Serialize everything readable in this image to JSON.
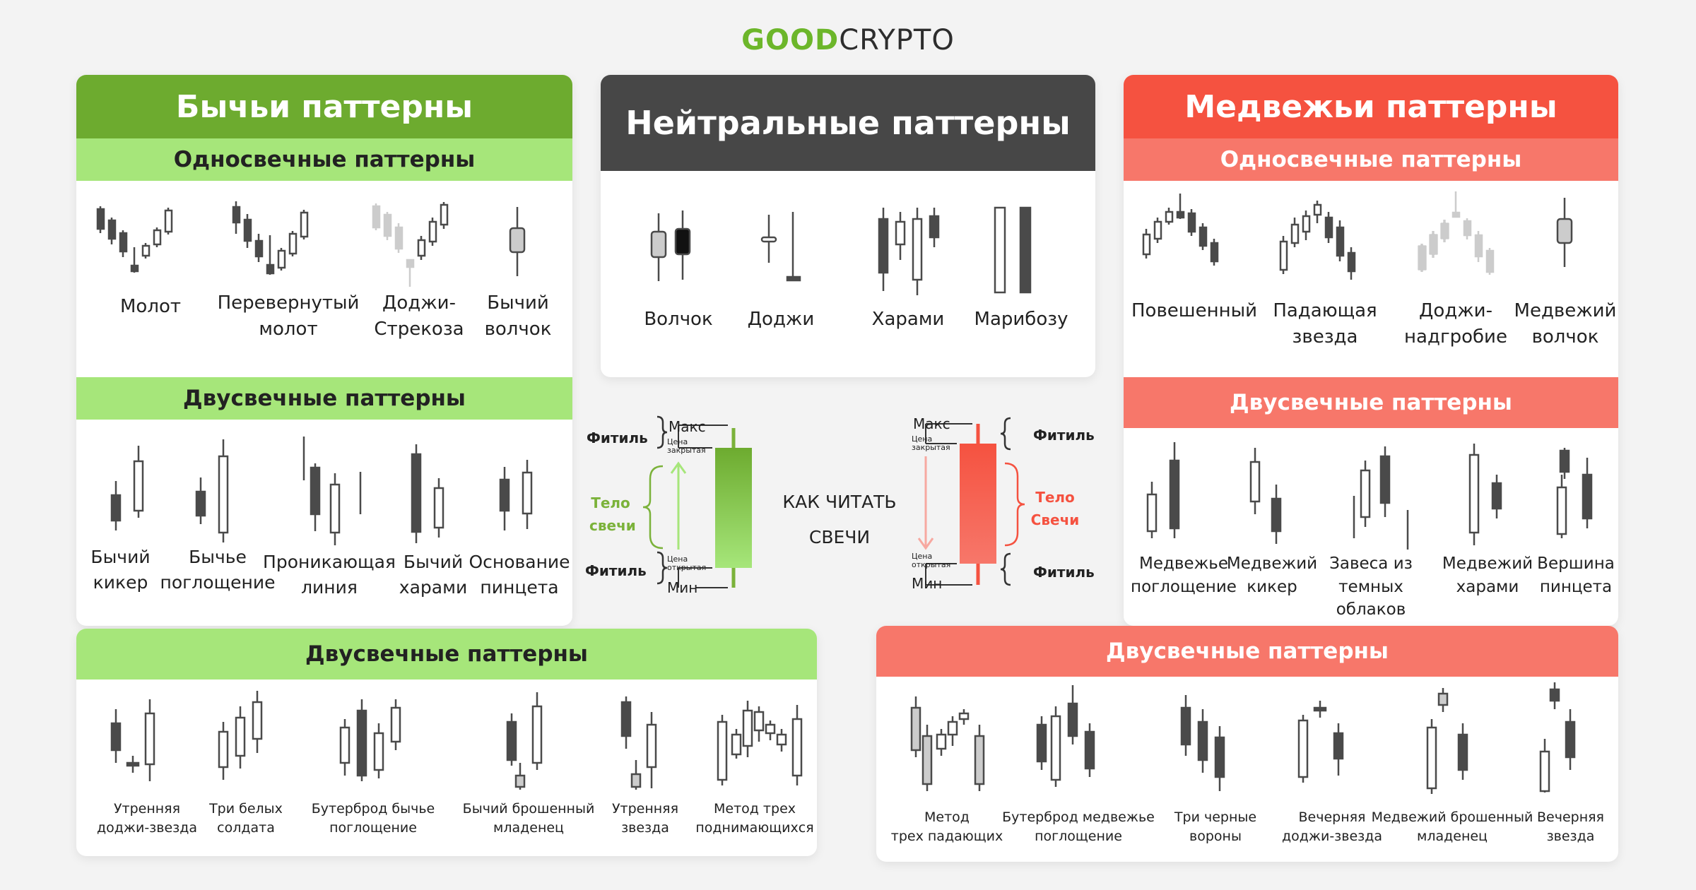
{
  "logo": {
    "part1": "GOOD",
    "part2": "CRYPTO",
    "part1_color": "#6cb62a",
    "part2_color": "#2d2d2d"
  },
  "colors": {
    "green": "#6dab2f",
    "green_light": "#a6e67a",
    "dark": "#474747",
    "red": "#f55240",
    "red_light": "#f7776a",
    "candle_dark": "#4a4a4a",
    "candle_light": "#ffffff",
    "candle_faded": "#cccccc"
  },
  "bullish": {
    "title": "Бычьи паттерны",
    "single_title": "Односвечные паттерны",
    "single_items": [
      {
        "l1": "Молот",
        "l2": ""
      },
      {
        "l1": "Перевернутый",
        "l2": "молот"
      },
      {
        "l1": "Доджи-",
        "l2": "Стрекоза"
      },
      {
        "l1": "Бычий",
        "l2": "волчок"
      }
    ],
    "double_title": "Двусвечные паттерны",
    "double_items": [
      {
        "l1": "Бычий",
        "l2": "кикер"
      },
      {
        "l1": "Бычье",
        "l2": "поглощение"
      },
      {
        "l1": "Проникающая",
        "l2": "линия"
      },
      {
        "l1": "Бычий",
        "l2": "харами"
      },
      {
        "l1": "Основание",
        "l2": "пинцета"
      }
    ]
  },
  "neutral": {
    "title": "Нейтральные паттерны",
    "items": [
      "Волчок",
      "Доджи",
      "Харами",
      "Марибозу"
    ]
  },
  "bearish": {
    "title": "Медвежьи паттерны",
    "single_title": "Односвечные паттерны",
    "single_items": [
      {
        "l1": "Повешенный",
        "l2": ""
      },
      {
        "l1": "Падающая",
        "l2": "звезда"
      },
      {
        "l1": "Доджи-",
        "l2": "надгробие"
      },
      {
        "l1": "Медвежий",
        "l2": "волчок"
      }
    ],
    "double_title": "Двусвечные паттерны",
    "double_items": [
      {
        "l1": "Медвежье",
        "l2": "поглощение",
        "l3": ""
      },
      {
        "l1": "Медвежий",
        "l2": "кикер",
        "l3": ""
      },
      {
        "l1": "Завеса из",
        "l2": "темных",
        "l3": "облаков"
      },
      {
        "l1": "Медвежий",
        "l2": "харами",
        "l3": ""
      },
      {
        "l1": "Вершина",
        "l2": "пинцета",
        "l3": ""
      }
    ]
  },
  "how_to_read": {
    "title_l1": "КАК ЧИТАТЬ",
    "title_l2": "СВЕЧИ",
    "wick": "Фитиль",
    "body_l1": "Тело",
    "body_l2": "свечи",
    "body_l2_red": "Свечи",
    "max": "Макс",
    "min": "Мин",
    "price_close_l1": "Цена",
    "price_close_l2": "закрытая",
    "price_open_l1": "Цена",
    "price_open_l2": "открытая"
  },
  "bull_triple": {
    "title": "Двусвечные паттерны",
    "items": [
      {
        "l1": "Утренняя",
        "l2": "доджи-звезда"
      },
      {
        "l1": "Три белых",
        "l2": "солдата"
      },
      {
        "l1": "Бутерброд бычье",
        "l2": "поглощение"
      },
      {
        "l1": "Бычий брошенный",
        "l2": "младенец"
      },
      {
        "l1": "Утренняя",
        "l2": "звезда"
      },
      {
        "l1": "Метод трех",
        "l2": "поднимающихся"
      }
    ]
  },
  "bear_triple": {
    "title": "Двусвечные паттерны",
    "items": [
      {
        "l1": "Метод",
        "l2": "трех падающих"
      },
      {
        "l1": "Бутерброд медвежье",
        "l2": "поглощение"
      },
      {
        "l1": "Три черные",
        "l2": "вороны"
      },
      {
        "l1": "Вечерняя",
        "l2": "доджи-звезда"
      },
      {
        "l1": "Медвежий брошенный",
        "l2": "младенец"
      },
      {
        "l1": "Вечерняя",
        "l2": "звезда"
      }
    ]
  }
}
